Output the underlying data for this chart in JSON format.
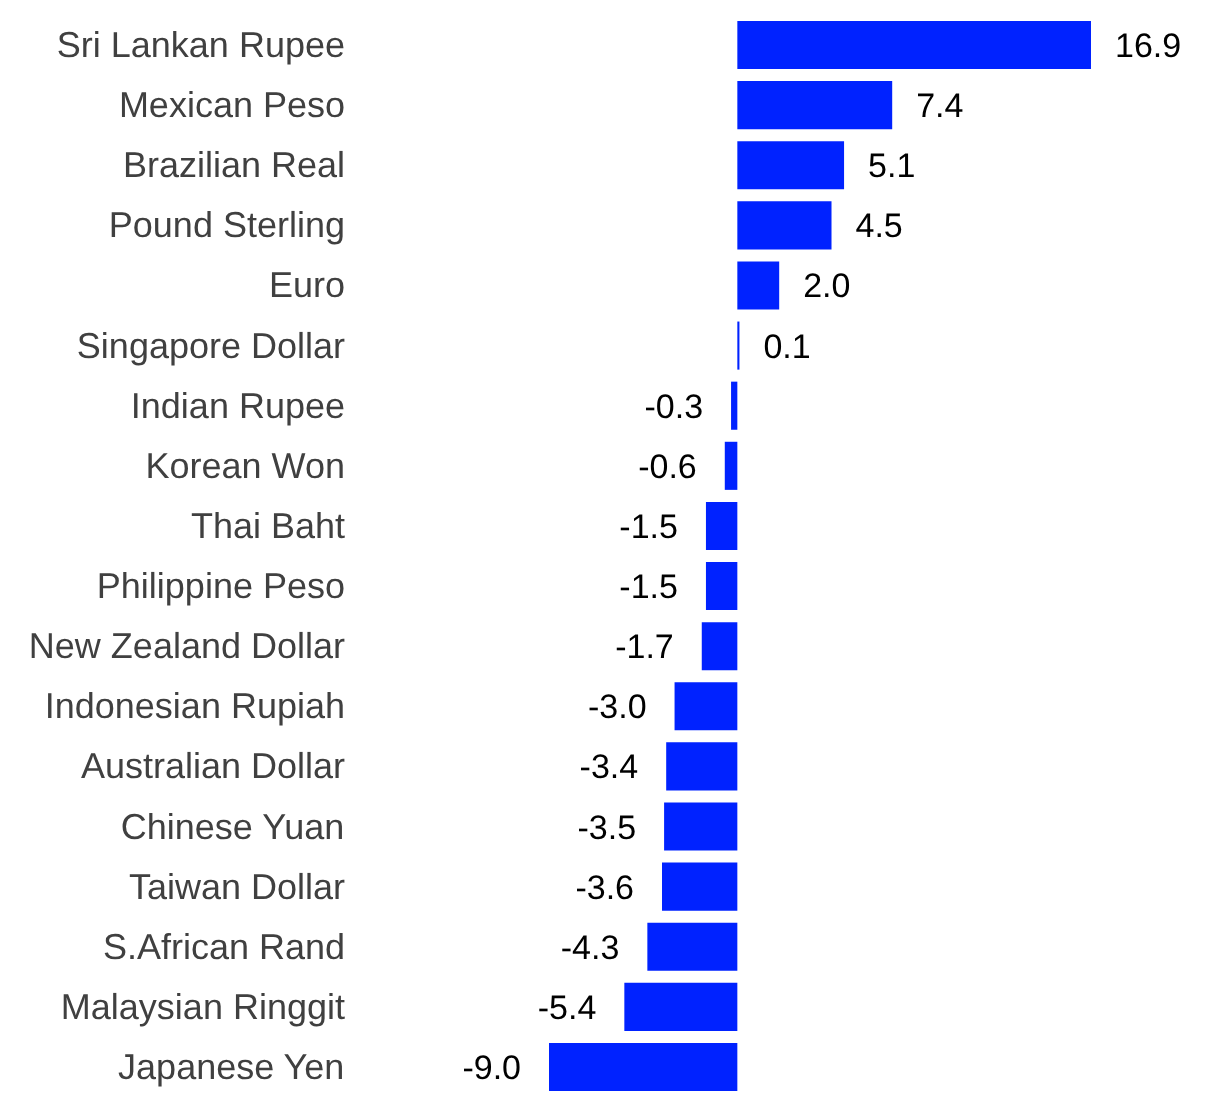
{
  "chart_data": {
    "type": "bar",
    "orientation": "horizontal",
    "categories": [
      "Sri Lankan Rupee",
      "Mexican Peso",
      "Brazilian Real",
      "Pound Sterling",
      "Euro",
      "Singapore Dollar",
      "Indian Rupee",
      "Korean Won",
      "Thai Baht",
      "Philippine Peso",
      "New Zealand Dollar",
      "Indonesian Rupiah",
      "Australian Dollar",
      "Chinese Yuan",
      "Taiwan Dollar",
      "S.African Rand",
      "Malaysian Ringgit",
      "Japanese Yen"
    ],
    "values": [
      16.9,
      7.4,
      5.1,
      4.5,
      2.0,
      0.1,
      -0.3,
      -0.6,
      -1.5,
      -1.5,
      -1.7,
      -3.0,
      -3.4,
      -3.5,
      -3.6,
      -4.3,
      -5.4,
      -9.0
    ],
    "value_labels": [
      "16.9",
      "7.4",
      "5.1",
      "4.5",
      "2.0",
      "0.1",
      "-0.3",
      "-0.6",
      "-1.5",
      "-1.5",
      "-1.7",
      "-3.0",
      "-3.4",
      "-3.5",
      "-3.6",
      "-4.3",
      "-5.4",
      "-9.0"
    ],
    "color": "#0022ff",
    "tick_labels": "y",
    "grid": false
  }
}
